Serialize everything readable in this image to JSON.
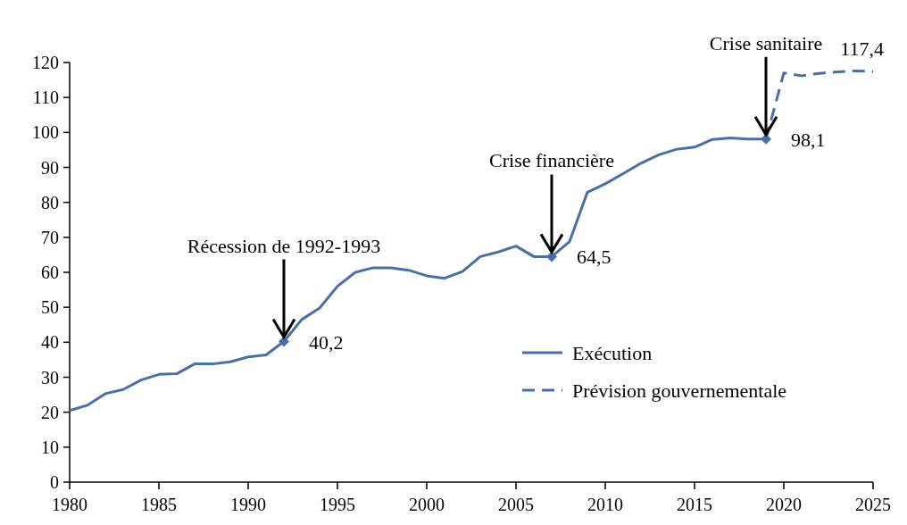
{
  "chart_data": {
    "type": "line",
    "x": [
      1980,
      1981,
      1982,
      1983,
      1984,
      1985,
      1986,
      1987,
      1988,
      1989,
      1990,
      1991,
      1992,
      1993,
      1994,
      1995,
      1996,
      1997,
      1998,
      1999,
      2000,
      2001,
      2002,
      2003,
      2004,
      2005,
      2006,
      2007,
      2008,
      2009,
      2010,
      2011,
      2012,
      2013,
      2014,
      2015,
      2016,
      2017,
      2018,
      2019
    ],
    "series": [
      {
        "name": "Exécution",
        "color": "#4a6fa5",
        "line_style": "solid",
        "values": [
          20.5,
          22,
          25.3,
          26.5,
          29.2,
          30.8,
          31,
          33.8,
          33.8,
          34.4,
          35.8,
          36.4,
          40.2,
          46.5,
          49.8,
          56,
          60,
          61.3,
          61.3,
          60.6,
          59,
          58.3,
          60.2,
          64.5,
          65.8,
          67.5,
          64.5,
          64.5,
          68.8,
          82.9,
          85.3,
          88.2,
          91.2,
          93.6,
          95.2,
          95.8,
          98,
          98.4,
          98.1,
          98.1
        ]
      },
      {
        "name": "Prévision gouvernementale",
        "color": "#4a6fa5",
        "line_style": "dashed",
        "marker": "none",
        "x": [
          2019,
          2020,
          2021,
          2022,
          2023,
          2024,
          2025
        ],
        "values": [
          98.1,
          117,
          116.2,
          116.9,
          117.3,
          117.6,
          117.4
        ],
        "value_labels": [
          null,
          null,
          null,
          null,
          null,
          null,
          "117,4"
        ]
      },
      {
        "type": "scatter",
        "color": "#4a6fa5",
        "marker": "diamond",
        "x": [
          1992,
          2007,
          2019
        ],
        "values": [
          40.2,
          64.5,
          98.1
        ],
        "value_labels": [
          "40,2",
          "64,5",
          "98,1"
        ]
      }
    ],
    "xlim": [
      1980,
      2025
    ],
    "xticks": [
      1980,
      1985,
      1990,
      1995,
      2000,
      2005,
      2010,
      2015,
      2020,
      2025
    ],
    "ylim": [
      0,
      120
    ],
    "yticks": [
      0,
      10,
      20,
      30,
      40,
      50,
      60,
      70,
      80,
      90,
      100,
      110,
      120
    ],
    "grid": false,
    "legend": "bottom right",
    "annotations": [
      {
        "text": "Récession de 1992-1993",
        "x": 1992,
        "y": 40.2
      },
      {
        "text": "Crise financière",
        "x": 2007,
        "y": 64.5
      },
      {
        "text": "Crise sanitaire",
        "x": 2019,
        "y": 98.1
      }
    ]
  }
}
